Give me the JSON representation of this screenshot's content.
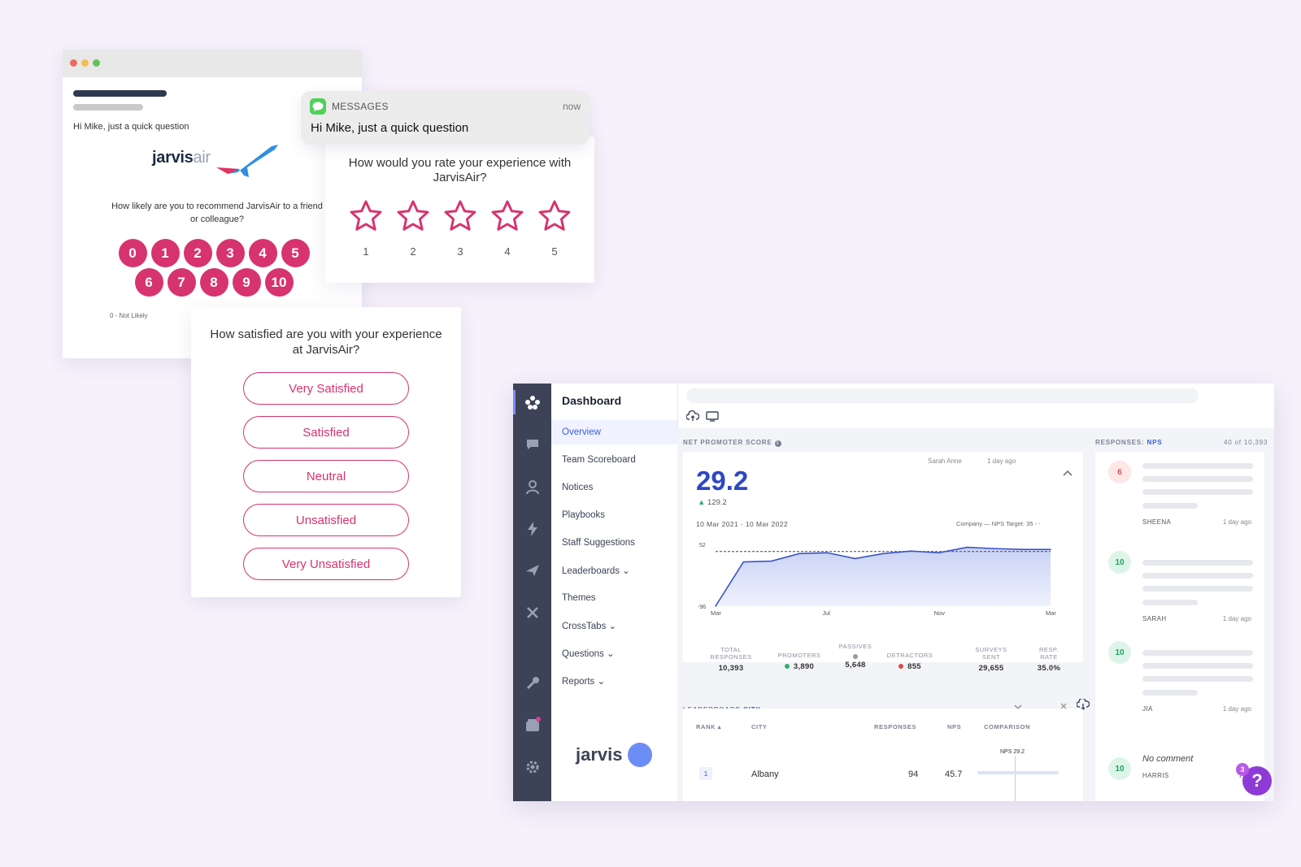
{
  "email": {
    "greeting": "Hi Mike, just a quick question",
    "brand_bold": "jarvis",
    "brand_light": "air",
    "question": "How likely are you to recommend JarvisAir to a friend or colleague?",
    "scale_row1": [
      "0",
      "1",
      "2",
      "3",
      "4",
      "5"
    ],
    "scale_row2": [
      "6",
      "7",
      "8",
      "9",
      "10"
    ],
    "scale_low_label": "0 - Not Likely",
    "scale_color": "#d7336e"
  },
  "message": {
    "app": "MESSAGES",
    "time": "now",
    "text": "Hi Mike, just a quick question"
  },
  "rating": {
    "question": "How would you rate your experience with JarvisAir?",
    "stars": [
      "1",
      "2",
      "3",
      "4",
      "5"
    ],
    "star_color": "#d7336e"
  },
  "satisfaction": {
    "question": "How satisfied are you with your experience at JarvisAir?",
    "options": [
      "Very Satisfied",
      "Satisfied",
      "Neutral",
      "Unsatisfied",
      "Very Unsatisfied"
    ]
  },
  "dashboard": {
    "nav_title": "Dashboard",
    "nav_items": [
      "Overview",
      "Team Scoreboard",
      "Notices",
      "Playbooks",
      "Staff Suggestions",
      "Leaderboards ⌄",
      "Themes",
      "CrossTabs ⌄",
      "Questions ⌄",
      "Reports ⌄"
    ],
    "brand": "jarvis",
    "rail_icons": [
      "logo-icon",
      "chat-icon",
      "user-icon",
      "lightning-icon",
      "send-icon",
      "tools-icon",
      "wrench-icon",
      "store-icon",
      "settings-icon"
    ],
    "nps": {
      "label": "NET PROMOTER SCORE",
      "info": "i",
      "score": "29.2",
      "delta": "129.2",
      "author": "Sarah Anne",
      "author_time": "1 day ago",
      "date_range": "10 Mar 2021 - 10 Mar 2022",
      "legend": "Company —   NPS Target: 35 - -",
      "stats": [
        {
          "label": "TOTAL RESPONSES",
          "value": "10,393"
        },
        {
          "label": "PROMOTERS",
          "value": "3,890"
        },
        {
          "label": "PASSIVES",
          "value": "5,648"
        },
        {
          "label": "DETRACTORS",
          "value": "855"
        },
        {
          "label": "SURVEYS SENT",
          "value": "29,655"
        },
        {
          "label": "RESP. RATE",
          "value": "35.0%"
        }
      ]
    },
    "leaderboard": {
      "label": "LEADERBOARD",
      "label_hl": "CITY",
      "headers": [
        "RANK ▴",
        "CITY",
        "RESPONSES",
        "NPS",
        "COMPARISON"
      ],
      "nps_ref": "NPS 29.2",
      "row": {
        "rank": "1",
        "city": "Albany",
        "responses": "94",
        "nps": "45.7"
      }
    },
    "responses": {
      "label": "RESPONSES:",
      "label_hl": "NPS",
      "count": "40 of 10,393",
      "items": [
        {
          "score": "6",
          "name": "SHEENA",
          "time": "1 day ago"
        },
        {
          "score": "10",
          "name": "SARAH",
          "time": "1 day ago"
        },
        {
          "score": "10",
          "name": "JIA",
          "time": "1 day ago"
        },
        {
          "score": "10",
          "name": "HARRIS",
          "time": "1 da",
          "comment": "No comment"
        }
      ]
    },
    "help": {
      "label": "?",
      "count": "3"
    }
  },
  "chart_data": {
    "type": "area",
    "x": [
      "Mar",
      "Apr",
      "May",
      "Jun",
      "Jul",
      "Aug",
      "Sep",
      "Oct",
      "Nov",
      "Dec",
      "Jan",
      "Feb",
      "Mar"
    ],
    "xticks": [
      "Mar",
      "Jul",
      "Nov",
      "Mar"
    ],
    "series": [
      {
        "values": [
          -96,
          10,
          12,
          30,
          32,
          18,
          30,
          36,
          32,
          45,
          42,
          40,
          40
        ]
      }
    ],
    "target": 35,
    "ylim": [
      -96,
      52
    ],
    "yticks": [
      "52",
      "-96"
    ],
    "color": "#3a54c9"
  }
}
